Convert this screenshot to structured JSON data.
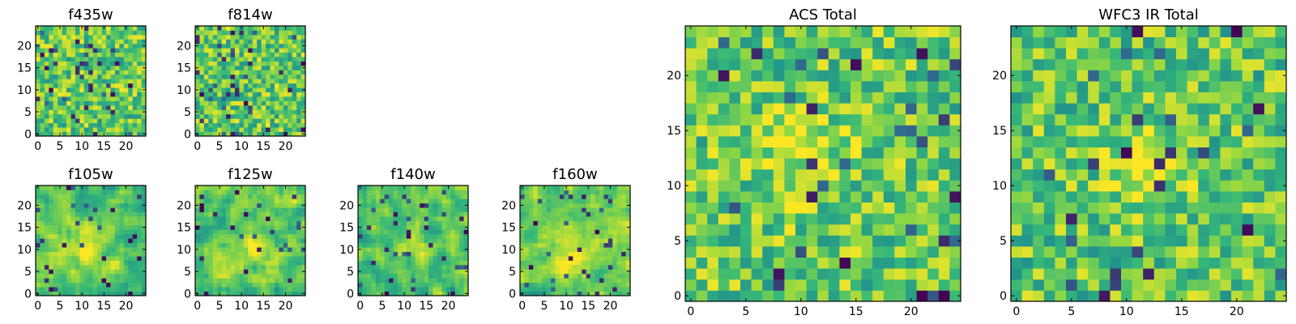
{
  "figure": {
    "colormap": [
      "#440154",
      "#31688e",
      "#21918c",
      "#35b779",
      "#90d743",
      "#fde725"
    ]
  },
  "chart_data": [
    {
      "type": "heatmap",
      "title": "f435w",
      "size": 25,
      "xticks": [
        0,
        5,
        10,
        15,
        20
      ],
      "yticks": [
        0,
        5,
        10,
        15,
        20
      ],
      "xlim": [
        0,
        25
      ],
      "ylim": [
        0,
        25
      ],
      "grid": false,
      "seed": 11,
      "smooth": 0,
      "bias": 0.7,
      "low_frac": 0.06,
      "blob": null
    },
    {
      "type": "heatmap",
      "title": "f814w",
      "size": 25,
      "xticks": [
        0,
        5,
        10,
        15,
        20
      ],
      "yticks": [
        0,
        5,
        10,
        15,
        20
      ],
      "xlim": [
        0,
        25
      ],
      "ylim": [
        0,
        25
      ],
      "grid": false,
      "seed": 23,
      "smooth": 0,
      "bias": 0.7,
      "low_frac": 0.06,
      "blob": null
    },
    {
      "type": "heatmap",
      "title": "ACS Total",
      "size": 25,
      "xticks": [
        0,
        5,
        10,
        15,
        20
      ],
      "yticks": [
        0,
        5,
        10,
        15,
        20
      ],
      "xlim": [
        0,
        25
      ],
      "ylim": [
        0,
        25
      ],
      "grid": false,
      "seed": 37,
      "smooth": 0,
      "bias": 0.7,
      "low_frac": 0.04,
      "blob": [
        10,
        13,
        3,
        0.18
      ]
    },
    {
      "type": "heatmap",
      "title": "WFC3 IR Total",
      "size": 25,
      "xticks": [
        0,
        5,
        10,
        15,
        20
      ],
      "yticks": [
        0,
        5,
        10,
        15,
        20
      ],
      "xlim": [
        0,
        25
      ],
      "ylim": [
        0,
        25
      ],
      "grid": false,
      "seed": 41,
      "smooth": 0,
      "bias": 0.68,
      "low_frac": 0.04,
      "blob": [
        12,
        12,
        2.5,
        0.3
      ]
    },
    {
      "type": "heatmap",
      "title": "f105w",
      "size": 25,
      "xticks": [
        0,
        5,
        10,
        15,
        20
      ],
      "yticks": [
        0,
        5,
        10,
        15,
        20
      ],
      "xlim": [
        0,
        25
      ],
      "ylim": [
        0,
        25
      ],
      "grid": false,
      "seed": 53,
      "smooth": 1,
      "bias": 0.66,
      "low_frac": 0.05,
      "blob": [
        11,
        10,
        3,
        0.3
      ]
    },
    {
      "type": "heatmap",
      "title": "f125w",
      "size": 25,
      "xticks": [
        0,
        5,
        10,
        15,
        20
      ],
      "yticks": [
        0,
        5,
        10,
        15,
        20
      ],
      "xlim": [
        0,
        25
      ],
      "ylim": [
        0,
        25
      ],
      "grid": false,
      "seed": 67,
      "smooth": 1,
      "bias": 0.68,
      "low_frac": 0.04,
      "blob": [
        12,
        10,
        3,
        0.2
      ]
    },
    {
      "type": "heatmap",
      "title": "f140w",
      "size": 25,
      "xticks": [
        0,
        5,
        10,
        15,
        20
      ],
      "yticks": [
        0,
        5,
        10,
        15,
        20
      ],
      "xlim": [
        0,
        25
      ],
      "ylim": [
        0,
        25
      ],
      "grid": false,
      "seed": 79,
      "smooth": 1,
      "bias": 0.64,
      "low_frac": 0.05,
      "blob": [
        12,
        11,
        3,
        0.2
      ]
    },
    {
      "type": "heatmap",
      "title": "f160w",
      "size": 25,
      "xticks": [
        0,
        5,
        10,
        15,
        20
      ],
      "yticks": [
        0,
        5,
        10,
        15,
        20
      ],
      "xlim": [
        0,
        25
      ],
      "ylim": [
        0,
        25
      ],
      "grid": false,
      "seed": 97,
      "smooth": 1,
      "bias": 0.68,
      "low_frac": 0.04,
      "blob": [
        11,
        9,
        3,
        0.2
      ]
    }
  ]
}
